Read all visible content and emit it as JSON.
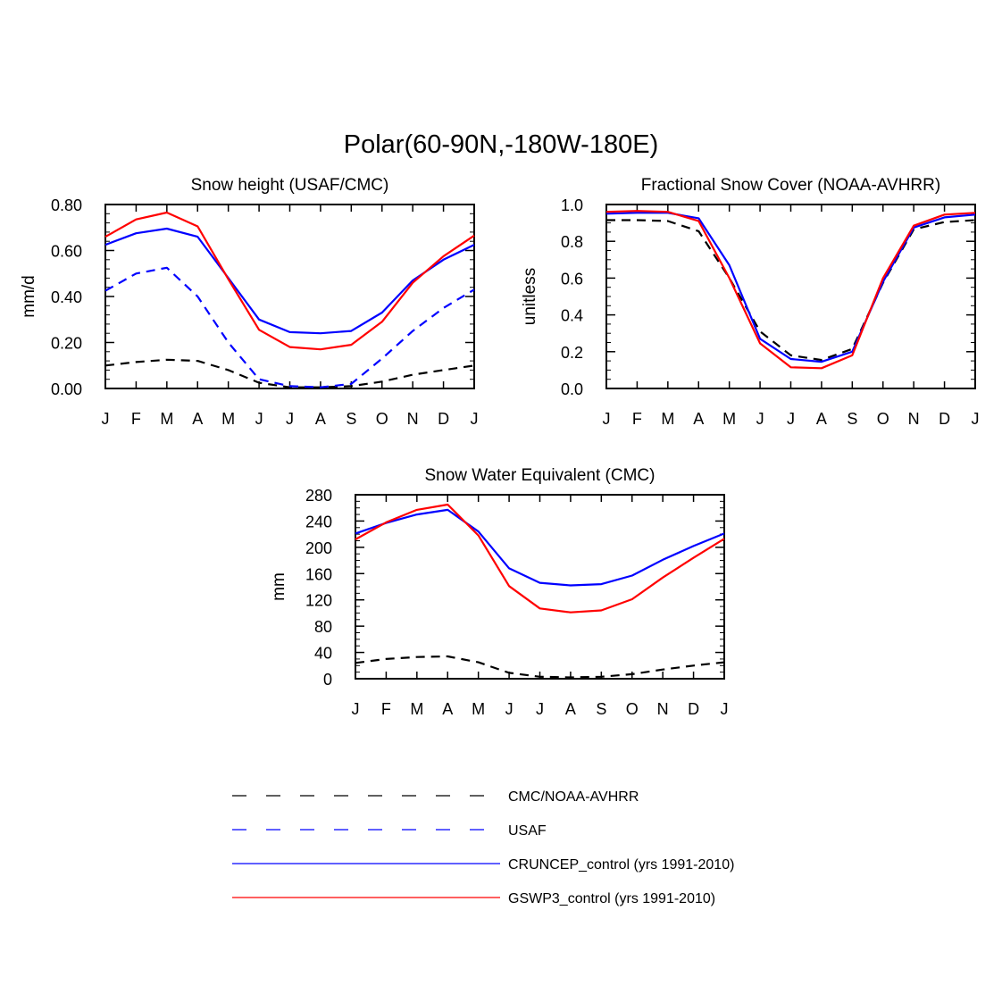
{
  "figure": {
    "title": "Polar(60-90N,-180W-180E)"
  },
  "series_styles": [
    {
      "name": "CMC/NOAA-AVHRR",
      "color": "#000000",
      "dash": "dashed"
    },
    {
      "name": "USAF",
      "color": "#0000ff",
      "dash": "dashed"
    },
    {
      "name": "CRUNCEP_control (yrs 1991-2010)",
      "color": "#0000ff",
      "dash": "solid"
    },
    {
      "name": "GSWP3_control (yrs 1991-2010)",
      "color": "#ff0000",
      "dash": "solid"
    }
  ],
  "legend": {
    "items": [
      {
        "label": "CMC/NOAA-AVHRR",
        "color": "#000000",
        "dash": "dashed"
      },
      {
        "label": "USAF",
        "color": "#0000ff",
        "dash": "dashed"
      },
      {
        "label": "CRUNCEP_control (yrs 1991-2010)",
        "color": "#0000ff",
        "dash": "solid"
      },
      {
        "label": "GSWP3_control (yrs 1991-2010)",
        "color": "#ff0000",
        "dash": "solid"
      }
    ]
  },
  "chart_data": [
    {
      "type": "line",
      "title": "Snow height (USAF/CMC)",
      "xlabel": "",
      "ylabel": "mm/d",
      "categories": [
        "J",
        "F",
        "M",
        "A",
        "M",
        "J",
        "J",
        "A",
        "S",
        "O",
        "N",
        "D",
        "J"
      ],
      "ylim": [
        0,
        0.8
      ],
      "yticks": [
        "0.00",
        "0.20",
        "0.40",
        "0.60",
        "0.80"
      ],
      "ytick_values": [
        0,
        0.2,
        0.4,
        0.6,
        0.8
      ],
      "yminor_step": 0.04,
      "series": [
        {
          "name": "CMC/NOAA-AVHRR",
          "values": [
            0.1,
            0.115,
            0.125,
            0.12,
            0.08,
            0.025,
            0.005,
            0.005,
            0.01,
            0.03,
            0.06,
            0.08,
            0.1
          ]
        },
        {
          "name": "USAF",
          "values": [
            0.425,
            0.5,
            0.525,
            0.4,
            0.2,
            0.04,
            0.01,
            0.005,
            0.02,
            0.13,
            0.25,
            0.35,
            0.43
          ]
        },
        {
          "name": "CRUNCEP_control (yrs 1991-2010)",
          "values": [
            0.625,
            0.675,
            0.695,
            0.66,
            0.48,
            0.3,
            0.245,
            0.24,
            0.25,
            0.33,
            0.47,
            0.56,
            0.625
          ]
        },
        {
          "name": "GSWP3_control (yrs 1991-2010)",
          "values": [
            0.66,
            0.735,
            0.765,
            0.705,
            0.475,
            0.255,
            0.18,
            0.17,
            0.19,
            0.29,
            0.46,
            0.575,
            0.665
          ]
        }
      ]
    },
    {
      "type": "line",
      "title": "Fractional Snow Cover (NOAA-AVHRR)",
      "xlabel": "",
      "ylabel": "unitless",
      "categories": [
        "J",
        "F",
        "M",
        "A",
        "M",
        "J",
        "J",
        "A",
        "S",
        "O",
        "N",
        "D",
        "J"
      ],
      "ylim": [
        0,
        1.0
      ],
      "yticks": [
        "0.0",
        "0.2",
        "0.4",
        "0.6",
        "0.8",
        "1.0"
      ],
      "ytick_values": [
        0,
        0.2,
        0.4,
        0.6,
        0.8,
        1.0
      ],
      "yminor_step": 0.05,
      "series": [
        {
          "name": "CMC/NOAA-AVHRR",
          "values": [
            0.915,
            0.915,
            0.91,
            0.855,
            0.6,
            0.31,
            0.18,
            0.155,
            0.215,
            0.575,
            0.865,
            0.905,
            0.915
          ]
        },
        {
          "name": "CRUNCEP_control (yrs 1991-2010)",
          "values": [
            0.95,
            0.955,
            0.955,
            0.925,
            0.67,
            0.27,
            0.16,
            0.145,
            0.2,
            0.58,
            0.875,
            0.93,
            0.945
          ]
        },
        {
          "name": "GSWP3_control (yrs 1991-2010)",
          "values": [
            0.96,
            0.965,
            0.96,
            0.91,
            0.6,
            0.245,
            0.115,
            0.11,
            0.18,
            0.6,
            0.885,
            0.945,
            0.955
          ]
        }
      ]
    },
    {
      "type": "line",
      "title": "Snow Water Equivalent (CMC)",
      "xlabel": "",
      "ylabel": "mm",
      "categories": [
        "J",
        "F",
        "M",
        "A",
        "M",
        "J",
        "J",
        "A",
        "S",
        "O",
        "N",
        "D",
        "J"
      ],
      "ylim": [
        0,
        280
      ],
      "yticks": [
        "0",
        "40",
        "80",
        "120",
        "160",
        "200",
        "240",
        "280"
      ],
      "ytick_values": [
        0,
        40,
        80,
        120,
        160,
        200,
        240,
        280
      ],
      "yminor_step": 10,
      "series": [
        {
          "name": "CMC/NOAA-AVHRR",
          "values": [
            24,
            30,
            33,
            34,
            25,
            9,
            3,
            2,
            3,
            7,
            14,
            20,
            25
          ]
        },
        {
          "name": "CRUNCEP_control (yrs 1991-2010)",
          "values": [
            221,
            237,
            250,
            257,
            224,
            168,
            146,
            142,
            144,
            157,
            181,
            202,
            221
          ]
        },
        {
          "name": "GSWP3_control (yrs 1991-2010)",
          "values": [
            212,
            238,
            257,
            265,
            218,
            141,
            107,
            101,
            104,
            121,
            154,
            184,
            213
          ]
        }
      ]
    }
  ]
}
